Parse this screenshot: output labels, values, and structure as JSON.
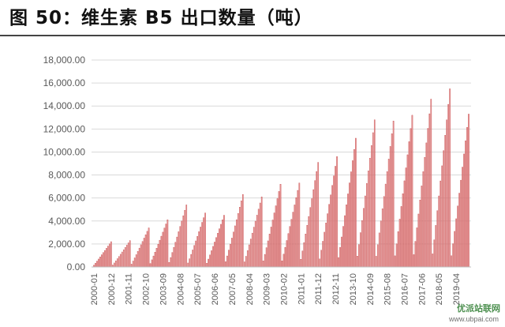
{
  "page": {
    "title": "图 50：维生素 B5 出口数量（吨）"
  },
  "watermark": {
    "text": "优派站联网",
    "url": "www.ubpai.com"
  },
  "chart_data": {
    "type": "bar",
    "title": "",
    "xlabel": "",
    "ylabel": "",
    "ylim": [
      0,
      18000
    ],
    "grid": true,
    "legend": "none",
    "bar_color": "#e89a9a",
    "bar_edge_color": "#c0393b",
    "y_ticks": [
      "0.00",
      "2,000.00",
      "4,000.00",
      "6,000.00",
      "8,000.00",
      "10,000.00",
      "12,000.00",
      "14,000.00",
      "16,000.00",
      "18,000.00"
    ],
    "x_tick_labels": [
      "2000-01",
      "2000-12",
      "2001-11",
      "2002-10",
      "2003-09",
      "2004-08",
      "2005-07",
      "2006-06",
      "2007-05",
      "2008-04",
      "2009-03",
      "2010-02",
      "2011-01",
      "2011-12",
      "2012-11",
      "2013-10",
      "2014-09",
      "2015-08",
      "2016-07",
      "2017-06",
      "2018-05",
      "2019-04"
    ],
    "categories": [
      "2000-01 … 2019-12 (monthly)"
    ],
    "annual_peaks": [
      {
        "year": "2000",
        "peak": 2200
      },
      {
        "year": "2001",
        "peak": 2300
      },
      {
        "year": "2002",
        "peak": 3400
      },
      {
        "year": "2003",
        "peak": 4100
      },
      {
        "year": "2004",
        "peak": 5400
      },
      {
        "year": "2005",
        "peak": 4700
      },
      {
        "year": "2006",
        "peak": 4500
      },
      {
        "year": "2007",
        "peak": 6300
      },
      {
        "year": "2008",
        "peak": 6100
      },
      {
        "year": "2009",
        "peak": 7200
      },
      {
        "year": "2010",
        "peak": 7300
      },
      {
        "year": "2011",
        "peak": 9100
      },
      {
        "year": "2012",
        "peak": 9600
      },
      {
        "year": "2013",
        "peak": 11200
      },
      {
        "year": "2014",
        "peak": 12800
      },
      {
        "year": "2015",
        "peak": 12700
      },
      {
        "year": "2016",
        "peak": 13200
      },
      {
        "year": "2017",
        "peak": 14600
      },
      {
        "year": "2018",
        "peak": 15500
      },
      {
        "year": "2019",
        "peak": 13300
      }
    ]
  }
}
